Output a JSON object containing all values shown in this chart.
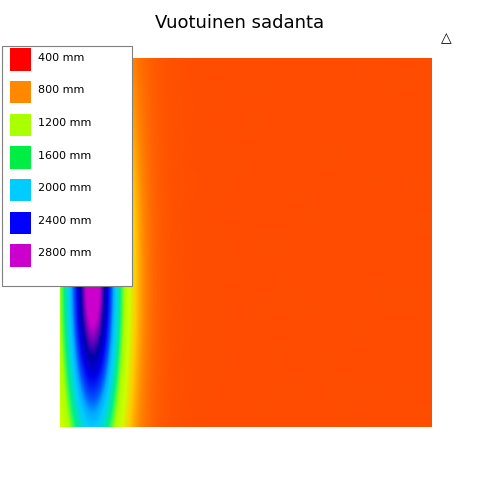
{
  "title": "Vuotuinen sadanta",
  "title_fontsize": 13,
  "legend_entries": [
    {
      "label": "400 mm",
      "color": "#ff0000"
    },
    {
      "label": "800 mm",
      "color": "#ff8800"
    },
    {
      "label": "1200 mm",
      "color": "#aaff00"
    },
    {
      "label": "1600 mm",
      "color": "#00ee44"
    },
    {
      "label": "2000 mm",
      "color": "#00ccff"
    },
    {
      "label": "2400 mm",
      "color": "#0000ff"
    },
    {
      "label": "2800 mm",
      "color": "#cc00cc"
    }
  ],
  "colormap_colors": [
    [
      0.0,
      "#ff2200"
    ],
    [
      0.1,
      "#ff5500"
    ],
    [
      0.2,
      "#ff8800"
    ],
    [
      0.3,
      "#ffcc00"
    ],
    [
      0.4,
      "#ccff00"
    ],
    [
      0.5,
      "#aaff00"
    ],
    [
      0.55,
      "#44ff44"
    ],
    [
      0.6,
      "#00ee88"
    ],
    [
      0.65,
      "#00ddcc"
    ],
    [
      0.7,
      "#00ccff"
    ],
    [
      0.75,
      "#00aaff"
    ],
    [
      0.8,
      "#0055ff"
    ],
    [
      0.87,
      "#0000ee"
    ],
    [
      0.93,
      "#0000aa"
    ],
    [
      1.0,
      "#cc00cc"
    ]
  ],
  "background_color": "#ffffff",
  "map_bg": "#ffffff",
  "vmin": 200,
  "vmax": 3000,
  "figsize": [
    4.8,
    4.8
  ],
  "dpi": 100
}
